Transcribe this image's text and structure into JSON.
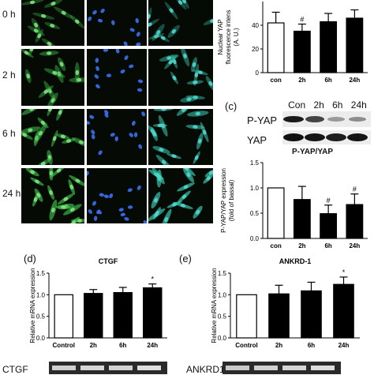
{
  "microscopy": {
    "row_labels": [
      "0 h",
      "2 h",
      "6 h",
      "24 h"
    ]
  },
  "panel_b": {
    "chart_data": {
      "type": "bar",
      "ylabel": "Nuclear YAP fluorescence intens (A. U.)",
      "categories": [
        "con",
        "2h",
        "6h",
        "24h"
      ],
      "values": [
        42,
        35,
        43,
        46
      ],
      "errors": [
        9,
        6,
        7,
        7
      ],
      "significance": [
        "",
        "#",
        "",
        ""
      ],
      "yticks": [
        "0",
        "20",
        "40"
      ],
      "ylim": [
        0,
        60
      ],
      "fills": [
        "#ffffff",
        "#000000",
        "#000000",
        "#000000"
      ]
    }
  },
  "panel_c": {
    "label": "(c)",
    "blot_headers": [
      "Con",
      "2h",
      "6h",
      "24h"
    ],
    "row_labels": [
      "P-YAP",
      "YAP"
    ],
    "caption": "P-YAP/YAP",
    "chart_data": {
      "type": "bar",
      "ylabel": "P-YAP/YAP expression (fold of bassal)",
      "categories": [
        "con",
        "2h",
        "6h",
        "24h"
      ],
      "values": [
        1.0,
        0.77,
        0.49,
        0.67
      ],
      "errors": [
        0,
        0.26,
        0.17,
        0.21
      ],
      "significance": [
        "",
        "",
        "#",
        "#"
      ],
      "yticks": [
        "0.0",
        "0.5",
        "1.0",
        "1.5"
      ],
      "ylim": [
        0,
        1.5
      ],
      "fills": [
        "#ffffff",
        "#000000",
        "#000000",
        "#000000"
      ]
    }
  },
  "panel_d": {
    "label": "(d)",
    "blot_label": "CTGF",
    "chart_data": {
      "type": "bar",
      "title": "CTGF",
      "ylabel": "Relative mRNA expression",
      "categories": [
        "Control",
        "2h",
        "6h",
        "24h"
      ],
      "values": [
        1.0,
        1.03,
        1.05,
        1.16
      ],
      "errors": [
        0,
        0.09,
        0.12,
        0.09
      ],
      "significance": [
        "",
        "",
        "",
        "*"
      ],
      "yticks": [
        "0.0",
        "0.5",
        "1.0",
        "1.5"
      ],
      "ylim": [
        0,
        1.5
      ],
      "fills": [
        "#ffffff",
        "#000000",
        "#000000",
        "#000000"
      ]
    }
  },
  "panel_e": {
    "label": "(e)",
    "blot_label": "ANKRD1",
    "chart_data": {
      "type": "bar",
      "title": "ANKRD-1",
      "ylabel": "Relative mRNA expression",
      "categories": [
        "Control",
        "2h",
        "6h",
        "24h"
      ],
      "values": [
        1.0,
        1.02,
        1.09,
        1.24
      ],
      "errors": [
        0,
        0.2,
        0.2,
        0.17
      ],
      "significance": [
        "",
        "",
        "",
        "*"
      ],
      "yticks": [
        "0.0",
        "0.5",
        "1.0",
        "1.5"
      ],
      "ylim": [
        0,
        1.5
      ],
      "fills": [
        "#ffffff",
        "#000000",
        "#000000",
        "#000000"
      ]
    }
  },
  "colors": {
    "micro_background": "#050a05",
    "yap_green": "#3fbf4a",
    "dapi_blue": "#2b5cd6",
    "merge_cyan": "#3ccfb5"
  }
}
